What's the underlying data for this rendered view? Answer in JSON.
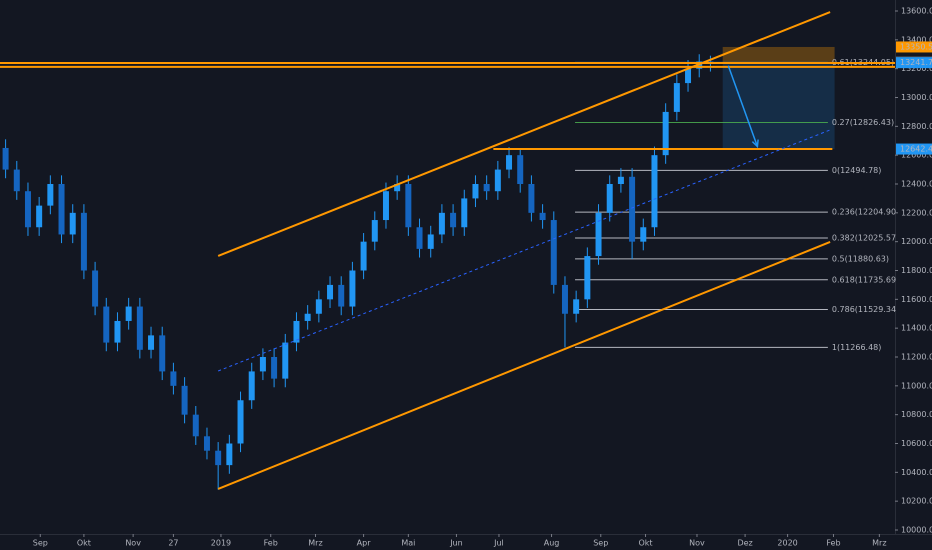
{
  "chart_data": {
    "type": "candlestick",
    "color": "#2196f3",
    "xlim": [
      0,
      80
    ],
    "ylim": [
      10000,
      13600
    ],
    "xticks": [
      {
        "value": 3.6,
        "label": "Sep"
      },
      {
        "value": 7.5,
        "label": "Okt"
      },
      {
        "value": 11.9,
        "label": "Nov"
      },
      {
        "value": 15.5,
        "label": "27"
      },
      {
        "value": 19.75,
        "label": "2019"
      },
      {
        "value": 24.2,
        "label": "Feb"
      },
      {
        "value": 28.2,
        "label": "Mrz"
      },
      {
        "value": 32.5,
        "label": "Apr"
      },
      {
        "value": 36.5,
        "label": "Mai"
      },
      {
        "value": 40.8,
        "label": "Jun"
      },
      {
        "value": 44.6,
        "label": "Jul"
      },
      {
        "value": 49.3,
        "label": "Aug"
      },
      {
        "value": 53.7,
        "label": "Sep"
      },
      {
        "value": 57.7,
        "label": "Okt"
      },
      {
        "value": 62.3,
        "label": "Nov"
      },
      {
        "value": 66.6,
        "label": "Dez"
      },
      {
        "value": 70.4,
        "label": "2020"
      },
      {
        "value": 74.5,
        "label": "Feb"
      },
      {
        "value": 78.6,
        "label": "Mrz"
      }
    ],
    "yticks": [
      {
        "value": 10000,
        "label": "10000.00"
      },
      {
        "value": 10200,
        "label": "10200.00"
      },
      {
        "value": 10400,
        "label": "10400.00"
      },
      {
        "value": 10600,
        "label": "10600.00"
      },
      {
        "value": 10800,
        "label": "10800.00"
      },
      {
        "value": 11000,
        "label": "11000.00"
      },
      {
        "value": 11200,
        "label": "11200.00"
      },
      {
        "value": 11400,
        "label": "11400.00"
      },
      {
        "value": 11600,
        "label": "11600.00"
      },
      {
        "value": 11800,
        "label": "11800.00"
      },
      {
        "value": 12000,
        "label": "12000.00"
      },
      {
        "value": 12200,
        "label": "12200.00"
      },
      {
        "value": 12400,
        "label": "12400.00"
      },
      {
        "value": 12600,
        "label": "12600.00"
      },
      {
        "value": 12800,
        "label": "12800.00"
      },
      {
        "value": 13000,
        "label": "13000.00"
      },
      {
        "value": 13200,
        "label": "13200.00"
      },
      {
        "value": 13400,
        "label": "13400.00"
      },
      {
        "value": 13600,
        "label": "13600.00"
      }
    ],
    "x": [
      0.5,
      1.5,
      2.5,
      3.5,
      4.5,
      5.5,
      6.5,
      7.5,
      8.5,
      9.5,
      10.5,
      11.5,
      12.5,
      13.5,
      14.5,
      15.5,
      16.5,
      17.5,
      18.5,
      19.5,
      20.5,
      21.5,
      22.5,
      23.5,
      24.5,
      25.5,
      26.5,
      27.5,
      28.5,
      29.5,
      30.5,
      31.5,
      32.5,
      33.5,
      34.5,
      35.5,
      36.5,
      37.5,
      38.5,
      39.5,
      40.5,
      41.5,
      42.5,
      43.5,
      44.5,
      45.5,
      46.5,
      47.5,
      48.5,
      49.5,
      50.5,
      51.5,
      52.5,
      53.5,
      54.5,
      55.5,
      56.5,
      57.5,
      58.5,
      59.5,
      60.5,
      61.5,
      62.5,
      63.5
    ],
    "open": [
      12650,
      12500,
      12350,
      12100,
      12250,
      12400,
      12050,
      12200,
      11800,
      11550,
      11300,
      11450,
      11550,
      11250,
      11350,
      11100,
      11000,
      10800,
      10650,
      10550,
      10450,
      10600,
      10900,
      11100,
      11200,
      11050,
      11300,
      11450,
      11500,
      11600,
      11700,
      11550,
      11800,
      12000,
      12150,
      12350,
      12400,
      12100,
      11950,
      12050,
      12200,
      12100,
      12300,
      12400,
      12350,
      12500,
      12600,
      12400,
      12200,
      12150,
      11700,
      11500,
      11600,
      11900,
      12200,
      12400,
      12450,
      12000,
      12100,
      12600,
      12900,
      13100,
      13200,
      13250
    ],
    "high": [
      12710,
      12560,
      12410,
      12310,
      12460,
      12460,
      12260,
      12260,
      11860,
      11610,
      11510,
      11610,
      11610,
      11410,
      11410,
      11160,
      11060,
      10860,
      10710,
      10610,
      10660,
      10960,
      11160,
      11260,
      11260,
      11360,
      11510,
      11560,
      11660,
      11760,
      11760,
      11860,
      12060,
      12210,
      12410,
      12460,
      12460,
      12160,
      12110,
      12260,
      12260,
      12360,
      12460,
      12460,
      12560,
      12656,
      12640,
      12460,
      12260,
      12210,
      11760,
      11660,
      11960,
      12260,
      12460,
      12510,
      12510,
      12160,
      12660,
      12960,
      13160,
      13260,
      13300,
      13290
    ],
    "low": [
      12440,
      12290,
      12040,
      12040,
      12190,
      11990,
      11990,
      11740,
      11490,
      11240,
      11240,
      11390,
      11190,
      11190,
      11040,
      10940,
      10740,
      10590,
      10490,
      10280,
      10390,
      10540,
      10840,
      11040,
      10990,
      10990,
      11240,
      11390,
      11440,
      11540,
      11490,
      11490,
      11740,
      11940,
      12090,
      12290,
      12040,
      11890,
      11890,
      11990,
      12040,
      12040,
      12240,
      12290,
      12290,
      12440,
      12340,
      12140,
      12090,
      11640,
      11266.48,
      11440,
      11540,
      11840,
      12140,
      12340,
      11880,
      11940,
      12040,
      12540,
      12840,
      13040,
      13140,
      13180
    ],
    "close": [
      12500,
      12350,
      12100,
      12250,
      12400,
      12050,
      12200,
      11800,
      11550,
      11300,
      11450,
      11550,
      11250,
      11350,
      11100,
      11000,
      10800,
      10650,
      10550,
      10450,
      10600,
      10900,
      11100,
      11200,
      11050,
      11300,
      11450,
      11500,
      11600,
      11700,
      11550,
      11800,
      12000,
      12150,
      12350,
      12400,
      12100,
      11950,
      12050,
      12200,
      12100,
      12300,
      12400,
      12350,
      12500,
      12600,
      12400,
      12200,
      12150,
      11700,
      11500,
      11600,
      11900,
      12200,
      12400,
      12450,
      12000,
      12100,
      12600,
      12900,
      13100,
      13200,
      13250,
      13241.75
    ],
    "lines": [
      {
        "x": [
          19.5,
          74.2
        ],
        "y": [
          11901,
          13593
        ],
        "color": "#ff9800"
      },
      {
        "x": [
          19.5,
          74.2
        ],
        "y": [
          10285,
          11998
        ],
        "color": "#ff9800"
      },
      {
        "x": [
          0,
          80
        ],
        "y": [
          13239,
          13239
        ],
        "color": "#ff9800"
      },
      {
        "x": [
          0,
          80
        ],
        "y": [
          13212,
          13212
        ],
        "color": "#ff9800"
      },
      {
        "x": [
          44.1,
          74.4
        ],
        "y": [
          12642.43,
          12642.43
        ],
        "color": "#ff9800"
      },
      {
        "x": [
          19.5,
          74.2
        ],
        "y": [
          11103,
          12775
        ],
        "color": "#2962ff",
        "dashed": true
      }
    ],
    "fib": {
      "x": [
        51.4,
        74
      ],
      "levels": [
        {
          "value": 13244.05,
          "label": "0.61(13244.05)",
          "color": "#2196f3"
        },
        {
          "value": 12826.43,
          "label": "0.27(12826.43)",
          "color": "#4caf50"
        },
        {
          "value": 12494.78,
          "label": "0(12494.78)",
          "color": "#d1d4dc"
        },
        {
          "value": 12204.9,
          "label": "0.236(12204.90)",
          "color": "#d1d4dc"
        },
        {
          "value": 12025.57,
          "label": "0.382(12025.57)",
          "color": "#d1d4dc"
        },
        {
          "value": 11880.63,
          "label": "0.5(11880.63)",
          "color": "#d1d4dc"
        },
        {
          "value": 11735.69,
          "label": "0.618(11735.69)",
          "color": "#d1d4dc"
        },
        {
          "value": 11529.34,
          "label": "0.786(11529.34)",
          "color": "#d1d4dc"
        },
        {
          "value": 11266.48,
          "label": "1(11266.48)",
          "color": "#d1d4dc"
        }
      ]
    },
    "position": {
      "x": [
        64.6,
        74.6
      ],
      "stop": 13350.51,
      "entry": 13244.05,
      "target": 12642.43
    },
    "arrow": {
      "x": [
        65.1,
        67.7
      ],
      "y": [
        13220,
        12660
      ],
      "color": "#2196f3"
    },
    "price_labels": [
      {
        "value": 13350.51,
        "color": "#ff9800"
      },
      {
        "value": 13248.24,
        "color": "#434651"
      },
      {
        "value": 13241.75,
        "color": "#2196f3"
      },
      {
        "value": 12642.43,
        "color": "#2196f3"
      }
    ]
  }
}
